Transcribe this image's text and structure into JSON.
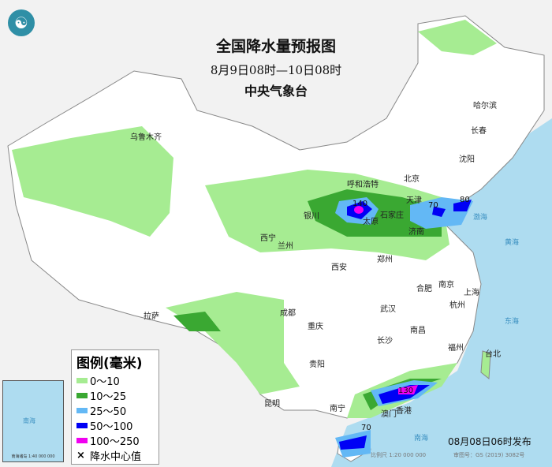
{
  "header": {
    "title": "全国降水量预报图",
    "period": "8月9日08时—10日08时",
    "agency": "中央气象台"
  },
  "legend": {
    "title": "图例(毫米)",
    "items": [
      {
        "label": "0～10",
        "color": "#a6ec92"
      },
      {
        "label": "10～25",
        "color": "#3aa832"
      },
      {
        "label": "25～50",
        "color": "#63b8f5"
      },
      {
        "label": "50～100",
        "color": "#0000f5"
      },
      {
        "label": "100～250",
        "color": "#f000f0"
      }
    ],
    "center_label": "降水中心值"
  },
  "cities": [
    "乌鲁木齐",
    "哈尔滨",
    "长春",
    "沈阳",
    "呼和浩特",
    "北京",
    "天津",
    "银川",
    "太原",
    "石家庄",
    "济南",
    "西宁",
    "兰州",
    "郑州",
    "西安",
    "合肥",
    "南京",
    "上海",
    "武汉",
    "杭州",
    "拉萨",
    "成都",
    "重庆",
    "南昌",
    "长沙",
    "福州",
    "台北",
    "贵阳",
    "昆明",
    "南宁",
    "澳门",
    "香港"
  ],
  "rain_centers": [
    "140",
    "70",
    "80",
    "130",
    "70"
  ],
  "seas": [
    "渤海",
    "黄海",
    "东海",
    "南海"
  ],
  "footer": {
    "issued": "08月08日06时发布",
    "scale": "比例尺 1:20 000 000",
    "review": "审图号：GS (2019) 3082号"
  },
  "inset": {
    "caption": "南海诸岛 1:40 000 000",
    "sea": "南海"
  }
}
